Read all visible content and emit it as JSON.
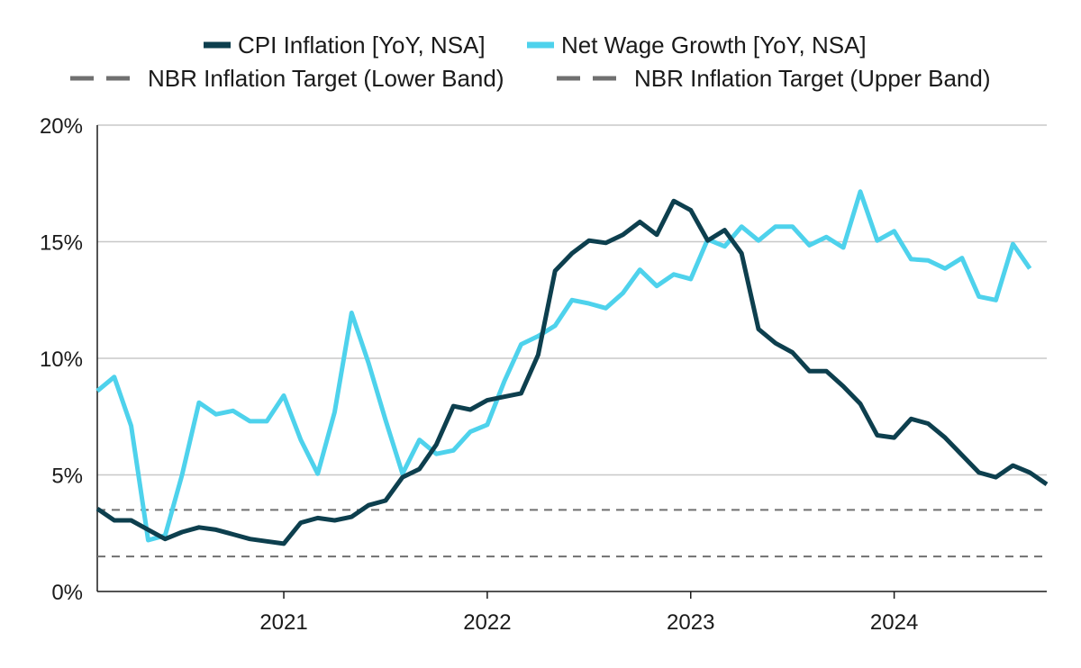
{
  "chart_data": {
    "type": "line",
    "title": "",
    "xlabel": "",
    "ylabel": "",
    "x_start": "2020-02",
    "x_end": "2024-10",
    "x_range": [
      "2020-02",
      "2024-10"
    ],
    "x_ticks": [
      {
        "label": "2021",
        "date": "2021-01"
      },
      {
        "label": "2022",
        "date": "2022-01"
      },
      {
        "label": "2023",
        "date": "2023-01"
      },
      {
        "label": "2024",
        "date": "2024-01"
      }
    ],
    "ylim": [
      0,
      20
    ],
    "y_ticks": [
      {
        "value": 0,
        "label": "0%"
      },
      {
        "value": 5,
        "label": "5%"
      },
      {
        "value": 10,
        "label": "10%"
      },
      {
        "value": 15,
        "label": "15%"
      },
      {
        "value": 20,
        "label": "20%"
      }
    ],
    "grid": "horizontal",
    "legend_position": "top",
    "series": [
      {
        "name": "CPI Inflation [YoY, NSA]",
        "color": "#0d3f4e",
        "style": "solid",
        "start": "2020-02",
        "values": [
          3.55,
          3.05,
          3.05,
          2.65,
          2.25,
          2.55,
          2.75,
          2.65,
          2.45,
          2.25,
          2.15,
          2.05,
          2.95,
          3.15,
          3.05,
          3.2,
          3.7,
          3.9,
          4.9,
          5.25,
          6.3,
          7.95,
          7.8,
          8.2,
          8.35,
          8.5,
          10.15,
          13.75,
          14.5,
          15.05,
          14.95,
          15.3,
          15.85,
          15.3,
          16.75,
          16.35,
          15.05,
          15.5,
          14.5,
          11.25,
          10.65,
          10.25,
          9.45,
          9.45,
          8.8,
          8.05,
          6.7,
          6.6,
          7.4,
          7.2,
          6.6,
          5.85,
          5.1,
          4.9,
          5.4,
          5.1,
          4.6
        ]
      },
      {
        "name": "Net Wage Growth [YoY, NSA]",
        "color": "#4ed2ec",
        "style": "solid",
        "start": "2020-02",
        "values": [
          8.6,
          9.2,
          7.1,
          2.2,
          2.4,
          5.0,
          8.1,
          7.6,
          7.75,
          7.3,
          7.3,
          8.4,
          6.5,
          5.05,
          7.7,
          11.95,
          9.8,
          7.35,
          5.05,
          6.5,
          5.9,
          6.05,
          6.85,
          7.15,
          9.0,
          10.6,
          10.95,
          11.4,
          12.5,
          12.35,
          12.15,
          12.8,
          13.8,
          13.1,
          13.6,
          13.4,
          15.1,
          14.8,
          15.65,
          15.05,
          15.65,
          15.65,
          14.85,
          15.2,
          14.75,
          17.15,
          15.05,
          15.45,
          14.25,
          14.2,
          13.85,
          14.3,
          12.65,
          12.5,
          14.9,
          13.85
        ]
      },
      {
        "name": "NBR Inflation Target (Lower Band)",
        "color": "#707070",
        "style": "dashed",
        "constant": 1.5
      },
      {
        "name": "NBR Inflation Target (Upper Band)",
        "color": "#707070",
        "style": "dashed",
        "constant": 3.5
      }
    ]
  }
}
